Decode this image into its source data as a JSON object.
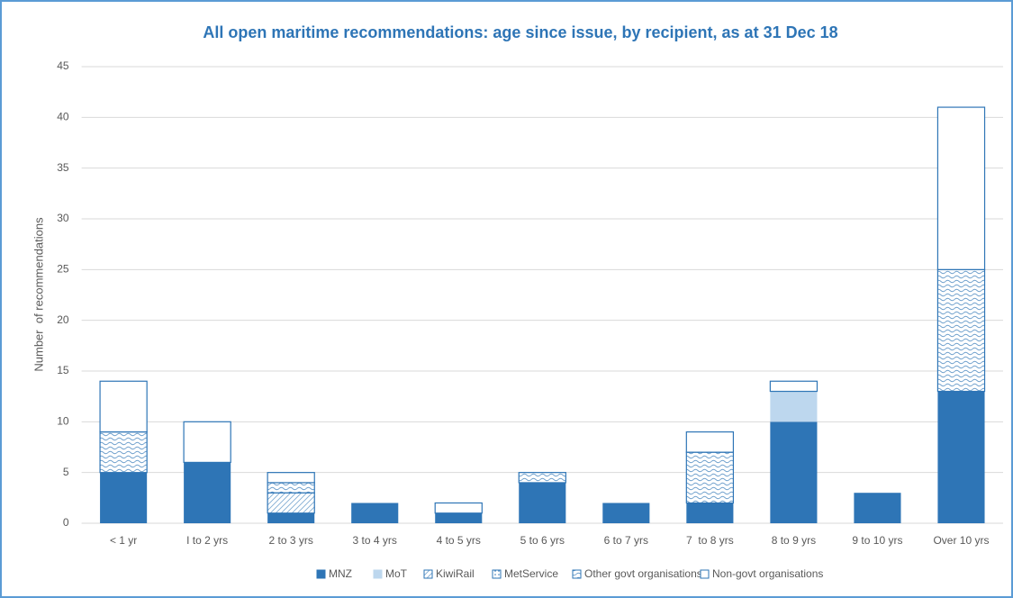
{
  "chart_data": {
    "type": "stacked_bar",
    "title": "All open maritime recommendations: age since issue, by recipient, as at 31 Dec 18",
    "y_label": "Number  of recommendations",
    "categories": [
      "< 1 yr",
      "I to 2 yrs",
      "2 to 3 yrs",
      "3 to 4 yrs",
      "4 to 5 yrs",
      "5 to 6 yrs",
      "6 to 7 yrs",
      "7  to 8 yrs",
      "8 to 9 yrs",
      "9 to 10 yrs",
      "Over 10 yrs"
    ],
    "series": [
      {
        "name": "MNZ",
        "color": "#2e75b6",
        "pattern": "solid",
        "values": [
          5,
          6,
          1,
          2,
          1,
          4,
          2,
          2,
          10,
          3,
          13
        ]
      },
      {
        "name": "MoT",
        "color": "#bdd7ee",
        "pattern": "solid",
        "values": [
          0,
          0,
          0,
          0,
          0,
          0,
          0,
          0,
          3,
          0,
          0
        ]
      },
      {
        "name": "KiwiRail",
        "color": "#2e75b6",
        "pattern": "diagonal",
        "values": [
          0,
          0,
          2,
          0,
          0,
          0,
          0,
          0,
          0,
          0,
          0
        ]
      },
      {
        "name": "MetService",
        "color": "#2e75b6",
        "pattern": "dots",
        "values": [
          0,
          0,
          0,
          0,
          0,
          0,
          0,
          0,
          0,
          0,
          0
        ]
      },
      {
        "name": "Other govt organisations",
        "color": "#2e75b6",
        "pattern": "wave",
        "values": [
          4,
          0,
          1,
          0,
          0,
          1,
          0,
          5,
          0,
          0,
          12
        ]
      },
      {
        "name": "Non-govt organisations",
        "color": "#2e75b6",
        "pattern": "none",
        "values": [
          5,
          4,
          1,
          0,
          1,
          0,
          0,
          2,
          1,
          0,
          16
        ]
      }
    ],
    "ylim": [
      0,
      45
    ],
    "yticks": [
      0,
      5,
      10,
      15,
      20,
      25,
      30,
      35,
      40,
      45
    ],
    "grid": true,
    "legend": "bottom"
  }
}
